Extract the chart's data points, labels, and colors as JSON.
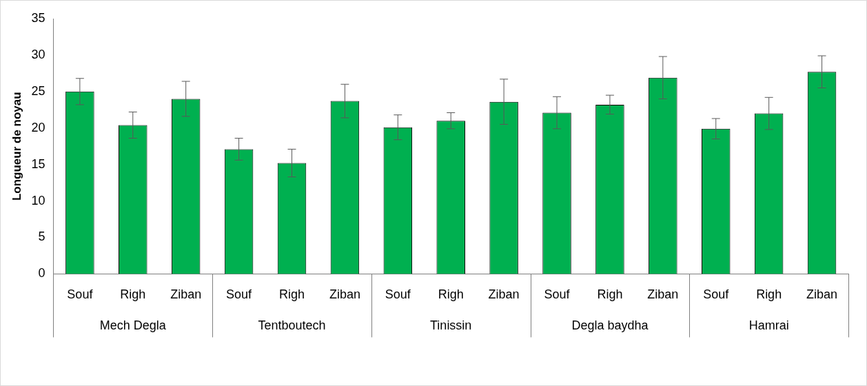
{
  "chart_data": {
    "type": "bar",
    "ylabel": "Longueur de noyau",
    "categories": [
      "Souf",
      "Righ",
      "Ziban",
      "Souf",
      "Righ",
      "Ziban",
      "Souf",
      "Righ",
      "Ziban",
      "Souf",
      "Righ",
      "Ziban",
      "Souf",
      "Righ",
      "Ziban"
    ],
    "values": [
      25.0,
      20.4,
      24.0,
      17.1,
      15.2,
      23.7,
      20.1,
      21.0,
      23.6,
      22.1,
      23.2,
      26.9,
      19.9,
      22.0,
      27.7
    ],
    "errors": [
      1.8,
      1.8,
      2.4,
      1.5,
      1.9,
      2.3,
      1.7,
      1.1,
      3.1,
      2.2,
      1.3,
      2.9,
      1.4,
      2.2,
      2.2
    ],
    "color": "#00b050",
    "annotations": [
      "Mech Degla",
      "Tentboutech",
      "Tinissin",
      "Degla baydha",
      "Hamrai"
    ],
    "ylim": [
      0,
      35
    ],
    "yticks": [
      0,
      5,
      10,
      15,
      20,
      25,
      30,
      35
    ],
    "grid": false,
    "legend": false
  }
}
